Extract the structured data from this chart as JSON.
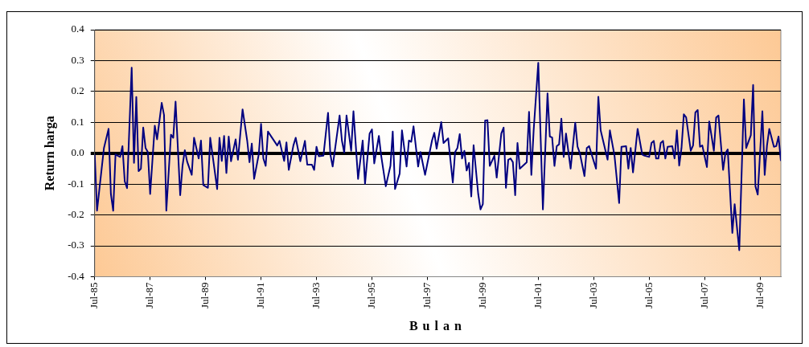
{
  "chart_data": {
    "type": "line",
    "xlabel": "Bulan",
    "ylabel": "Return harga",
    "x": [
      "1985-07",
      "1985-08",
      "1985-11",
      "1986-01",
      "1986-02",
      "1986-03",
      "1986-04",
      "1986-06",
      "1986-07",
      "1986-08",
      "1986-09",
      "1986-11",
      "1986-12",
      "1987-01",
      "1987-02",
      "1987-03",
      "1987-04",
      "1987-05",
      "1987-06",
      "1987-07",
      "1987-09",
      "1987-10",
      "1987-12",
      "1988-01",
      "1988-02",
      "1988-04",
      "1988-05",
      "1988-06",
      "1988-08",
      "1988-09",
      "1988-10",
      "1988-11",
      "1989-01",
      "1989-02",
      "1989-04",
      "1989-05",
      "1989-06",
      "1989-08",
      "1989-09",
      "1989-12",
      "1990-01",
      "1990-02",
      "1990-03",
      "1990-04",
      "1990-05",
      "1990-06",
      "1990-08",
      "1990-09",
      "1990-11",
      "1991-01",
      "1991-02",
      "1991-03",
      "1991-04",
      "1991-06",
      "1991-07",
      "1991-08",
      "1991-09",
      "1991-10",
      "1992-02",
      "1992-03",
      "1992-05",
      "1992-06",
      "1992-07",
      "1992-09",
      "1992-10",
      "1992-12",
      "1993-02",
      "1993-03",
      "1993-05",
      "1993-06",
      "1993-07",
      "1993-08",
      "1993-10",
      "1993-12",
      "1994-01",
      "1994-02",
      "1994-05",
      "1994-06",
      "1994-07",
      "1994-08",
      "1994-10",
      "1994-11",
      "1995-01",
      "1995-03",
      "1995-04",
      "1995-06",
      "1995-07",
      "1995-08",
      "1995-10",
      "1995-11",
      "1996-01",
      "1996-03",
      "1996-04",
      "1996-05",
      "1996-07",
      "1996-08",
      "1996-10",
      "1996-11",
      "1996-12",
      "1997-01",
      "1997-03",
      "1997-04",
      "1997-06",
      "1997-09",
      "1997-10",
      "1997-11",
      "1998-01",
      "1998-02",
      "1998-04",
      "1998-06",
      "1998-07",
      "1998-08",
      "1998-09",
      "1998-10",
      "1998-11",
      "1998-12",
      "1999-01",
      "1999-02",
      "1999-03",
      "1999-05",
      "1999-06",
      "1999-07",
      "1999-08",
      "1999-09",
      "1999-10",
      "1999-12",
      "2000-01",
      "2000-03",
      "2000-04",
      "2000-05",
      "2000-06",
      "2000-07",
      "2000-08",
      "2000-09",
      "2000-10",
      "2000-11",
      "2001-02",
      "2001-03",
      "2001-04",
      "2001-05",
      "2001-07",
      "2001-09",
      "2001-11",
      "2001-12",
      "2002-01",
      "2002-02",
      "2002-03",
      "2002-04",
      "2002-05",
      "2002-06",
      "2002-07",
      "2002-09",
      "2002-11",
      "2002-12",
      "2003-01",
      "2003-03",
      "2003-04",
      "2003-05",
      "2003-08",
      "2003-09",
      "2003-10",
      "2004-01",
      "2004-02",
      "2004-04",
      "2004-06",
      "2004-07",
      "2004-09",
      "2004-10",
      "2004-11",
      "2004-12",
      "2005-02",
      "2005-04",
      "2005-05",
      "2005-07",
      "2005-08",
      "2005-09",
      "2005-10",
      "2005-11",
      "2005-12",
      "2006-01",
      "2006-02",
      "2006-03",
      "2006-05",
      "2006-06",
      "2006-07",
      "2006-08",
      "2006-09",
      "2006-10",
      "2006-11",
      "2007-01",
      "2007-02",
      "2007-03",
      "2007-04",
      "2007-05",
      "2007-06",
      "2007-08",
      "2007-09",
      "2007-11",
      "2007-12",
      "2008-01",
      "2008-03",
      "2008-04",
      "2008-05",
      "2008-07",
      "2008-08",
      "2008-10",
      "2008-12",
      "2009-01",
      "2009-03",
      "2009-04",
      "2009-05",
      "2009-06",
      "2009-08",
      "2009-09",
      "2009-10",
      "2009-11",
      "2010-01",
      "2010-02",
      "2010-03",
      "2010-04"
    ],
    "series": [
      {
        "color": "#000080",
        "values": [
          -0.004,
          -0.186,
          0.017,
          0.079,
          -0.132,
          -0.186,
          -0.004,
          -0.012,
          0.023,
          -0.091,
          -0.113,
          0.277,
          -0.031,
          0.182,
          -0.058,
          -0.05,
          0.083,
          0.017,
          0.004,
          -0.132,
          0.089,
          0.045,
          0.163,
          0.124,
          -0.186,
          0.06,
          0.05,
          0.167,
          -0.136,
          -0.041,
          0.01,
          -0.027,
          -0.07,
          0.05,
          -0.017,
          0.041,
          -0.103,
          -0.112,
          0.05,
          -0.116,
          0.05,
          -0.025,
          0.056,
          -0.064,
          0.054,
          -0.026,
          0.045,
          -0.021,
          0.142,
          0.041,
          -0.029,
          0.031,
          -0.083,
          -0.004,
          0.095,
          -0.017,
          -0.041,
          0.07,
          0.025,
          0.04,
          -0.025,
          0.035,
          -0.054,
          0.025,
          0.05,
          -0.026,
          0.04,
          -0.037,
          -0.037,
          -0.054,
          0.021,
          -0.01,
          -0.008,
          0.131,
          -0.004,
          -0.043,
          0.122,
          0.041,
          0.002,
          0.122,
          0.008,
          0.136,
          -0.083,
          0.041,
          -0.099,
          0.064,
          0.077,
          -0.033,
          0.056,
          -0.008,
          -0.107,
          -0.041,
          0.07,
          -0.116,
          -0.066,
          0.074,
          -0.043,
          0.041,
          0.037,
          0.087,
          -0.043,
          0.004,
          -0.07,
          0.041,
          0.066,
          0.015,
          0.101,
          0.033,
          0.048,
          -0.095,
          0.004,
          0.017,
          0.062,
          -0.017,
          0.008,
          -0.056,
          -0.031,
          -0.14,
          0.026,
          -0.132,
          -0.182,
          -0.165,
          0.106,
          0.107,
          -0.041,
          -0.008,
          -0.079,
          0.064,
          0.083,
          -0.112,
          -0.021,
          -0.017,
          -0.029,
          -0.136,
          0.033,
          -0.05,
          -0.029,
          0.134,
          -0.07,
          0.074,
          0.293,
          -0.182,
          0.194,
          0.054,
          0.051,
          -0.041,
          0.023,
          0.029,
          0.112,
          -0.012,
          0.064,
          -0.05,
          0.099,
          0.021,
          0,
          -0.074,
          0.017,
          0.023,
          -0.05,
          0.183,
          0.074,
          -0.021,
          0.074,
          -0.008,
          -0.161,
          0.021,
          0.023,
          -0.05,
          0.017,
          -0.062,
          0.079,
          -0.004,
          -0.008,
          -0.012,
          0.033,
          0.04,
          -0.017,
          -0.017,
          0.033,
          0.04,
          -0.017,
          0.021,
          0.023,
          -0.017,
          0.074,
          -0.04,
          0.017,
          0.126,
          0.116,
          0.008,
          0.025,
          0.132,
          0.14,
          0.021,
          0.025,
          -0.045,
          0.103,
          0.008,
          0.116,
          0.122,
          -0.054,
          0,
          0.012,
          -0.258,
          -0.165,
          -0.314,
          0.174,
          0.017,
          0.058,
          0.221,
          -0.107,
          -0.134,
          0.136,
          -0.07,
          0.025,
          0.079,
          0.021,
          0.023,
          0.054,
          -0.025
        ]
      }
    ],
    "xlim": [
      "1985-07",
      "2010-04"
    ],
    "xticks": [
      {
        "value": "1985-07",
        "label": "Jul-85"
      },
      {
        "value": "1987-07",
        "label": "Jul-87"
      },
      {
        "value": "1989-07",
        "label": "Jul-89"
      },
      {
        "value": "1991-07",
        "label": "Jul-91"
      },
      {
        "value": "1993-07",
        "label": "Jul-93"
      },
      {
        "value": "1995-07",
        "label": "Jul-95"
      },
      {
        "value": "1997-07",
        "label": "Jul-97"
      },
      {
        "value": "1999-07",
        "label": "Jul-99"
      },
      {
        "value": "2001-07",
        "label": "Jul-01"
      },
      {
        "value": "2003-07",
        "label": "Jul-03"
      },
      {
        "value": "2005-07",
        "label": "Jul-05"
      },
      {
        "value": "2007-07",
        "label": "Jul-07"
      },
      {
        "value": "2009-07",
        "label": "Jul-09"
      }
    ],
    "ylim": [
      -0.4,
      0.4
    ],
    "yticks": [
      -0.4,
      -0.3,
      -0.2,
      -0.1,
      {
        "value": 0,
        "label": "0.0"
      },
      0.1,
      0.2,
      0.3,
      0.4
    ],
    "grid": "y"
  }
}
